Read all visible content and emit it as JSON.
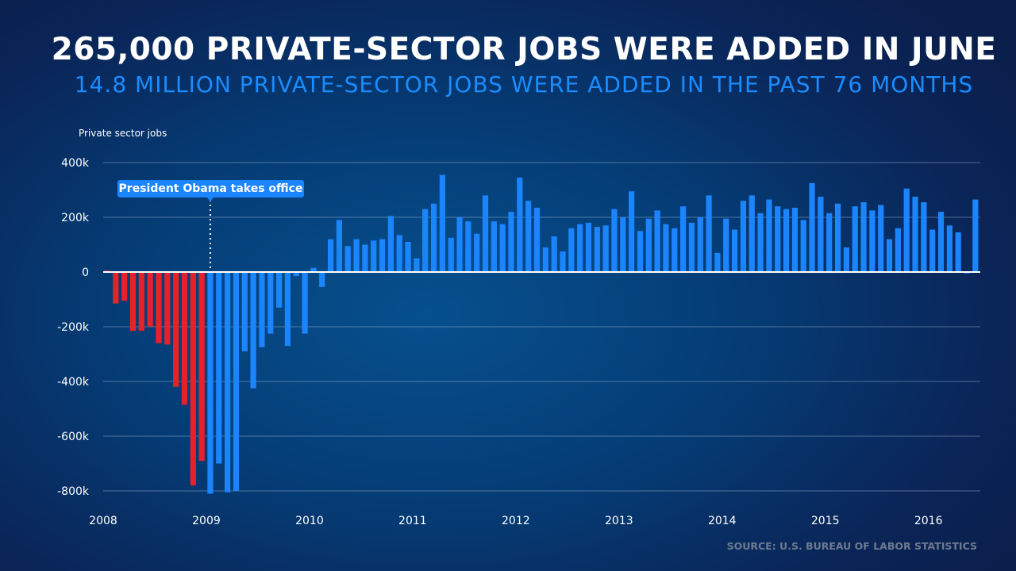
{
  "chart_data": {
    "type": "bar",
    "title": "265,000 PRIVATE-SECTOR JOBS WERE ADDED IN JUNE",
    "subtitle": "14.8 MILLION PRIVATE-SECTOR JOBS WERE ADDED IN THE PAST 76 MONTHS",
    "ylabel": "Private sector jobs",
    "xlabel": "",
    "ylim": [
      -800,
      400
    ],
    "y_unit": "thousands",
    "yticks": [
      400,
      200,
      0,
      -200,
      -400,
      -600,
      -800
    ],
    "ytick_labels": [
      "400k",
      "200k",
      "0",
      "-200k",
      "-400k",
      "-600k",
      "-800k"
    ],
    "xtick_labels": [
      "2008",
      "2009",
      "2010",
      "2011",
      "2012",
      "2013",
      "2014",
      "2015",
      "2016"
    ],
    "start": "2008-01",
    "frequency": "monthly",
    "grid": true,
    "annotation": {
      "text": "President Obama takes office",
      "month_index": 12
    },
    "source": "SOURCE: U.S. BUREAU OF LABOR STATISTICS",
    "colors": {
      "before": "#e8202a",
      "after": "#1a85ff"
    },
    "highlight_before_index": 12,
    "values": [
      5,
      -115,
      -105,
      -215,
      -215,
      -200,
      -260,
      -265,
      -420,
      -485,
      -780,
      -690,
      -810,
      -700,
      -805,
      -800,
      -290,
      -425,
      -275,
      -225,
      -130,
      -270,
      -15,
      -225,
      15,
      -55,
      120,
      190,
      95,
      120,
      100,
      115,
      120,
      205,
      135,
      110,
      50,
      230,
      250,
      355,
      125,
      200,
      185,
      140,
      280,
      185,
      175,
      220,
      345,
      260,
      235,
      90,
      130,
      75,
      160,
      175,
      180,
      165,
      170,
      230,
      200,
      295,
      150,
      195,
      225,
      175,
      160,
      240,
      180,
      200,
      280,
      70,
      195,
      155,
      260,
      280,
      215,
      265,
      240,
      230,
      235,
      190,
      325,
      275,
      215,
      250,
      90,
      240,
      255,
      225,
      245,
      120,
      160,
      305,
      275,
      255,
      155,
      220,
      170,
      145,
      -5,
      265
    ]
  }
}
